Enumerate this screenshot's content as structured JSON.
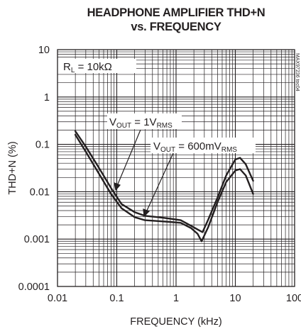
{
  "chart_data": {
    "type": "line",
    "title_lines": [
      "HEADPHONE AMPLIFIER THD+N",
      "vs. FREQUENCY"
    ],
    "xlabel": "FREQUENCY (kHz)",
    "ylabel": "THD+N (%)",
    "x_scale": "log",
    "y_scale": "log",
    "xlim": [
      0.01,
      100
    ],
    "ylim": [
      0.0001,
      10
    ],
    "x_ticks": [
      {
        "value": 0.01,
        "label": "0.01"
      },
      {
        "value": 0.1,
        "label": "0.1"
      },
      {
        "value": 1,
        "label": "1"
      },
      {
        "value": 10,
        "label": "10"
      },
      {
        "value": 100,
        "label": "100"
      }
    ],
    "y_ticks": [
      {
        "value": 0.0001,
        "label": "0.0001"
      },
      {
        "value": 0.001,
        "label": "0.001"
      },
      {
        "value": 0.01,
        "label": "0.01"
      },
      {
        "value": 0.1,
        "label": "0.1"
      },
      {
        "value": 1,
        "label": "1"
      },
      {
        "value": 10,
        "label": "10"
      }
    ],
    "grid": true,
    "condition": {
      "main": "R",
      "sub": "L",
      "rest": " = 10kΩ"
    },
    "watermark": "MAX97236 toc04",
    "series": [
      {
        "label": {
          "main": "V",
          "sub": "OUT",
          "mid": " = 1V",
          "sub2": "RMS"
        },
        "x": [
          0.02,
          0.03,
          0.05,
          0.08,
          0.12,
          0.2,
          0.3,
          0.5,
          0.8,
          1.2,
          1.8,
          2.3,
          2.8,
          3.5,
          5,
          7,
          10,
          12,
          15,
          20
        ],
        "y": [
          0.19,
          0.09,
          0.032,
          0.012,
          0.0055,
          0.0037,
          0.0031,
          0.0029,
          0.0027,
          0.0025,
          0.0019,
          0.0016,
          0.0014,
          0.0026,
          0.0075,
          0.022,
          0.048,
          0.052,
          0.038,
          0.017
        ]
      },
      {
        "label": {
          "main": "V",
          "sub": "OUT",
          "mid": " = 600mV",
          "sub2": "RMS"
        },
        "x": [
          0.02,
          0.03,
          0.05,
          0.08,
          0.12,
          0.2,
          0.3,
          0.5,
          0.8,
          1.2,
          1.8,
          2.3,
          2.7,
          3.5,
          5,
          7,
          10,
          12,
          15,
          20
        ],
        "y": [
          0.16,
          0.07,
          0.024,
          0.009,
          0.0045,
          0.0029,
          0.0025,
          0.0024,
          0.0023,
          0.0022,
          0.0017,
          0.0013,
          0.0009,
          0.0018,
          0.006,
          0.016,
          0.028,
          0.03,
          0.022,
          0.009
        ]
      }
    ]
  }
}
